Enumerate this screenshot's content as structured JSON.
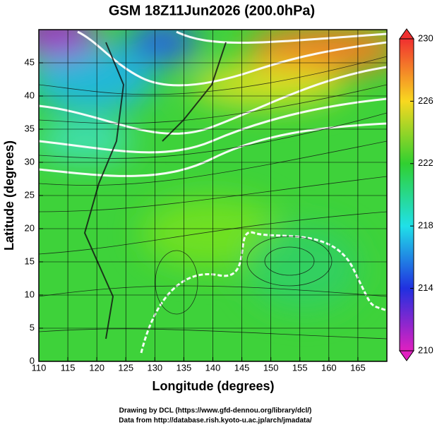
{
  "chart_data": {
    "type": "map",
    "title": "GSM 18Z11Jun2026 (200.0hPa)",
    "x_label": "Longitude (degrees)",
    "y_label": "Latitude  (degrees)",
    "xlim": [
      110,
      170
    ],
    "ylim": [
      0,
      50
    ],
    "xticks": [
      110,
      115,
      120,
      125,
      130,
      135,
      140,
      145,
      150,
      155,
      160,
      165
    ],
    "yticks": [
      0,
      5,
      10,
      15,
      20,
      25,
      30,
      35,
      40,
      45
    ],
    "grid": true,
    "colorbar": {
      "lim": [
        210,
        230
      ],
      "ticks": [
        210,
        214,
        218,
        222,
        226,
        230
      ],
      "colormap": [
        "#e020c0",
        "#2030e0",
        "#20e0e8",
        "#30d030",
        "#f8d820",
        "#f03030"
      ]
    },
    "credits": [
      "Drawing by DCL (https://www.gfd-dennou.org/library/dcl/)",
      "Data from http://database.rish.kyoto-u.ac.jp/arch/jmadata/"
    ]
  }
}
